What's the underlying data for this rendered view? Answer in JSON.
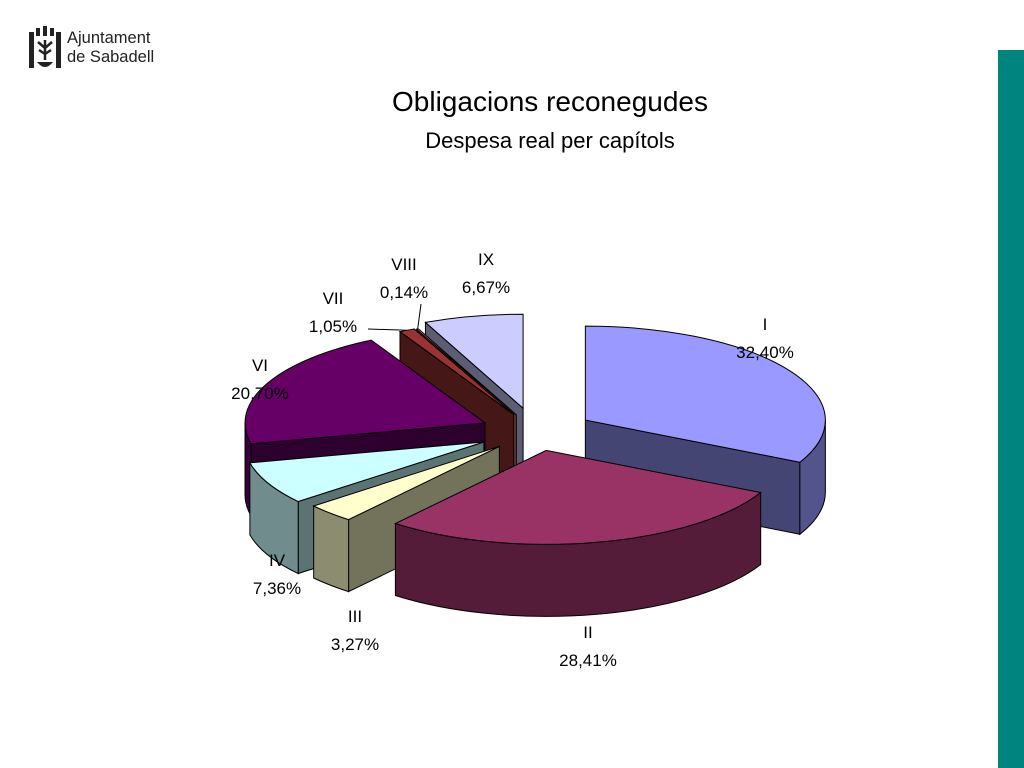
{
  "logo": {
    "line1": "Ajuntament",
    "line2": "de Sabadell",
    "icon": "city-shield-icon"
  },
  "accent_color": "#00847f",
  "chart_data": {
    "type": "pie",
    "title": "Obligacions reconegudes",
    "subtitle": "Despesa real per capítols",
    "three_d": true,
    "exploded": true,
    "slices": [
      {
        "name": "I",
        "value": 32.4,
        "label": "32,40%",
        "color": "#9999ff"
      },
      {
        "name": "II",
        "value": 28.41,
        "label": "28,41%",
        "color": "#993366"
      },
      {
        "name": "III",
        "value": 3.27,
        "label": "3,27%",
        "color": "#ffffcc"
      },
      {
        "name": "IV",
        "value": 7.36,
        "label": "7,36%",
        "color": "#ccffff"
      },
      {
        "name": "VI",
        "value": 20.7,
        "label": "20,70%",
        "color": "#660066"
      },
      {
        "name": "VII",
        "value": 1.05,
        "label": "1,05%",
        "color": "#993333"
      },
      {
        "name": "VIII",
        "value": 0.14,
        "label": "0,14%",
        "color": "#ff8080"
      },
      {
        "name": "IX",
        "value": 6.67,
        "label": "6,67%",
        "color": "#ccccff"
      }
    ]
  }
}
